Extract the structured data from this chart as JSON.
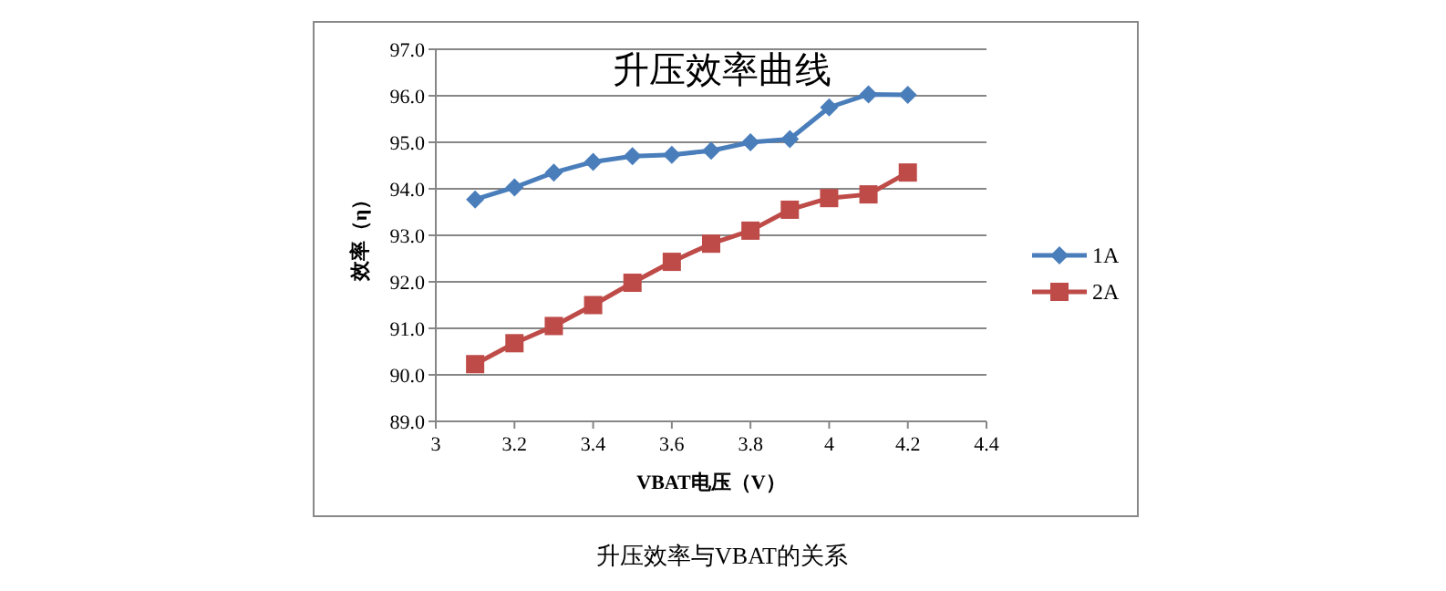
{
  "chart_data": {
    "type": "line",
    "title": "升压效率曲线",
    "xlabel": "VBAT电压（V）",
    "ylabel": "效率（η）",
    "annotations": [
      "升压效率与VBAT的关系"
    ],
    "x": [
      3.1,
      3.2,
      3.3,
      3.4,
      3.5,
      3.6,
      3.7,
      3.8,
      3.9,
      4.0,
      4.1,
      4.2
    ],
    "series": [
      {
        "name": "1A",
        "color": "#4a7ebb",
        "marker": "diamond",
        "values": [
          93.77,
          94.03,
          94.35,
          94.58,
          94.7,
          94.73,
          94.82,
          95.0,
          95.07,
          95.75,
          96.03,
          96.02
        ]
      },
      {
        "name": "2A",
        "color": "#be4b48",
        "marker": "square",
        "values": [
          90.23,
          90.68,
          91.05,
          91.5,
          91.98,
          92.43,
          92.82,
          93.1,
          93.55,
          93.8,
          93.88,
          94.35
        ]
      }
    ],
    "xlim": [
      3,
      4.4
    ],
    "xticks": [
      3,
      3.2,
      3.4,
      3.6,
      3.8,
      4,
      4.2,
      4.4
    ],
    "ylim": [
      89,
      97
    ],
    "yticks": [
      {
        "value": 89,
        "label": "89.0"
      },
      {
        "value": 90,
        "label": "90.0"
      },
      {
        "value": 91,
        "label": "91.0"
      },
      {
        "value": 92,
        "label": "92.0"
      },
      {
        "value": 93,
        "label": "93.0"
      },
      {
        "value": 94,
        "label": "94.0"
      },
      {
        "value": 95,
        "label": "95.0"
      },
      {
        "value": 96,
        "label": "96.0"
      },
      {
        "value": 97,
        "label": "97.0"
      }
    ],
    "grid": "y",
    "legend": "right"
  }
}
